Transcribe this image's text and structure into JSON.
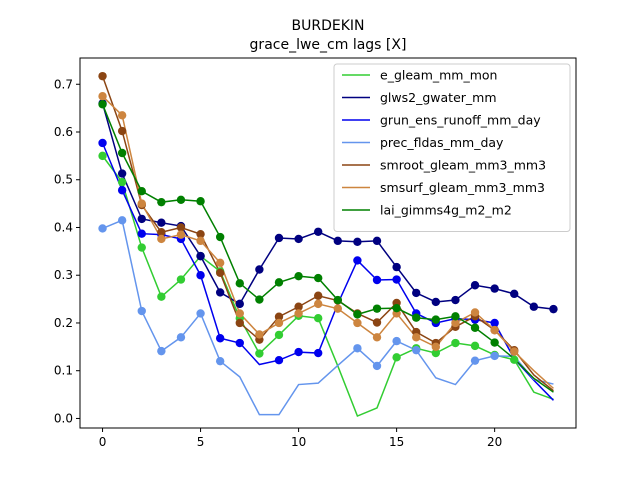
{
  "chart_data": {
    "type": "line",
    "title": "BURDEKIN",
    "subtitle": "grace_lwe_cm lags [X]",
    "xlabel": "",
    "ylabel": "",
    "xlim": [
      -1.15,
      24.15
    ],
    "ylim": [
      -0.02,
      0.755
    ],
    "xticks": [
      0,
      5,
      10,
      15,
      20
    ],
    "yticks": [
      0.0,
      0.1,
      0.2,
      0.3,
      0.4,
      0.5,
      0.6,
      0.7
    ],
    "ytick_labels": [
      "0.0",
      "0.1",
      "0.2",
      "0.3",
      "0.4",
      "0.5",
      "0.6",
      "0.7"
    ],
    "grid": false,
    "legend_position": "top-right",
    "x": [
      0,
      1,
      2,
      3,
      4,
      5,
      6,
      7,
      8,
      9,
      10,
      11,
      12,
      13,
      14,
      15,
      16,
      17,
      18,
      19,
      20,
      21,
      22,
      23
    ],
    "series": [
      {
        "name": "e_gleam_mm_mon",
        "color": "#32cd32",
        "values": [
          0.55,
          0.495,
          0.358,
          0.255,
          0.291,
          0.34,
          0.308,
          0.21,
          0.136,
          0.175,
          0.215,
          0.21,
          0.11,
          0.005,
          0.022,
          0.128,
          0.147,
          0.137,
          0.158,
          0.152,
          0.133,
          0.123,
          0.055,
          0.04
        ],
        "markers": [
          0,
          1,
          2,
          3,
          4,
          5,
          6,
          7,
          8,
          9,
          10,
          11,
          15,
          16,
          17,
          18,
          19,
          20,
          21
        ]
      },
      {
        "name": "glws2_gwater_mm",
        "color": "#000080",
        "values": [
          0.66,
          0.513,
          0.418,
          0.41,
          0.403,
          0.34,
          0.264,
          0.24,
          0.312,
          0.378,
          0.376,
          0.391,
          0.372,
          0.37,
          0.372,
          0.317,
          0.263,
          0.244,
          0.248,
          0.279,
          0.272,
          0.261,
          0.234,
          0.229
        ],
        "markers": [
          0,
          1,
          2,
          3,
          4,
          5,
          6,
          7,
          8,
          9,
          10,
          11,
          12,
          13,
          14,
          15,
          16,
          17,
          18,
          19,
          20,
          21,
          22,
          23
        ]
      },
      {
        "name": "grun_ens_runoff_mm_day",
        "color": "#0000ee",
        "values": [
          0.577,
          0.478,
          0.387,
          0.385,
          0.376,
          0.3,
          0.168,
          0.158,
          0.113,
          0.122,
          0.139,
          0.137,
          0.24,
          0.331,
          0.29,
          0.291,
          0.22,
          0.2,
          0.209,
          0.207,
          0.2,
          0.125,
          0.08,
          0.038
        ],
        "markers": [
          0,
          1,
          2,
          3,
          4,
          5,
          6,
          7,
          9,
          10,
          11,
          13,
          14,
          15,
          16,
          17,
          18,
          19,
          20
        ]
      },
      {
        "name": "prec_fldas_mm_day",
        "color": "#6495ed",
        "values": [
          0.398,
          0.415,
          0.225,
          0.141,
          0.17,
          0.22,
          0.12,
          0.087,
          0.008,
          0.008,
          0.071,
          0.074,
          0.111,
          0.147,
          0.11,
          0.162,
          0.143,
          0.085,
          0.071,
          0.121,
          0.131,
          0.13,
          0.082,
          0.072
        ],
        "markers": [
          0,
          1,
          2,
          3,
          4,
          5,
          6,
          13,
          14,
          15,
          16,
          19,
          20
        ]
      },
      {
        "name": "smroot_gleam_mm3_mm3",
        "color": "#8b4513",
        "values": [
          0.717,
          0.602,
          0.447,
          0.39,
          0.4,
          0.386,
          0.305,
          0.2,
          0.165,
          0.213,
          0.234,
          0.257,
          0.247,
          0.22,
          0.201,
          0.242,
          0.181,
          0.158,
          0.192,
          0.214,
          0.185,
          0.143,
          0.091,
          0.058
        ],
        "markers": [
          0,
          1,
          2,
          3,
          4,
          5,
          6,
          7,
          8,
          9,
          10,
          11,
          12,
          13,
          14,
          15,
          16,
          17,
          18,
          19,
          20,
          21
        ]
      },
      {
        "name": "smsurf_gleam_mm3_mm3",
        "color": "#cd853f",
        "values": [
          0.675,
          0.635,
          0.45,
          0.376,
          0.385,
          0.372,
          0.326,
          0.22,
          0.176,
          0.2,
          0.22,
          0.24,
          0.23,
          0.2,
          0.17,
          0.22,
          0.17,
          0.15,
          0.2,
          0.222,
          0.185,
          0.14,
          0.1,
          0.063
        ],
        "markers": [
          0,
          1,
          2,
          3,
          4,
          5,
          6,
          7,
          8,
          9,
          10,
          11,
          12,
          13,
          14,
          15,
          16,
          17,
          18,
          19,
          20,
          21
        ]
      },
      {
        "name": "lai_gimms4g_m2_m2",
        "color": "#008000",
        "values": [
          0.658,
          0.556,
          0.476,
          0.453,
          0.458,
          0.455,
          0.38,
          0.283,
          0.249,
          0.285,
          0.298,
          0.294,
          0.248,
          0.218,
          0.23,
          0.231,
          0.211,
          0.207,
          0.214,
          0.19,
          0.159,
          0.125,
          0.084,
          0.055
        ],
        "markers": [
          0,
          1,
          2,
          3,
          4,
          5,
          6,
          7,
          8,
          9,
          10,
          11,
          12,
          13,
          14,
          15,
          16,
          17,
          18,
          19,
          20
        ]
      }
    ]
  }
}
